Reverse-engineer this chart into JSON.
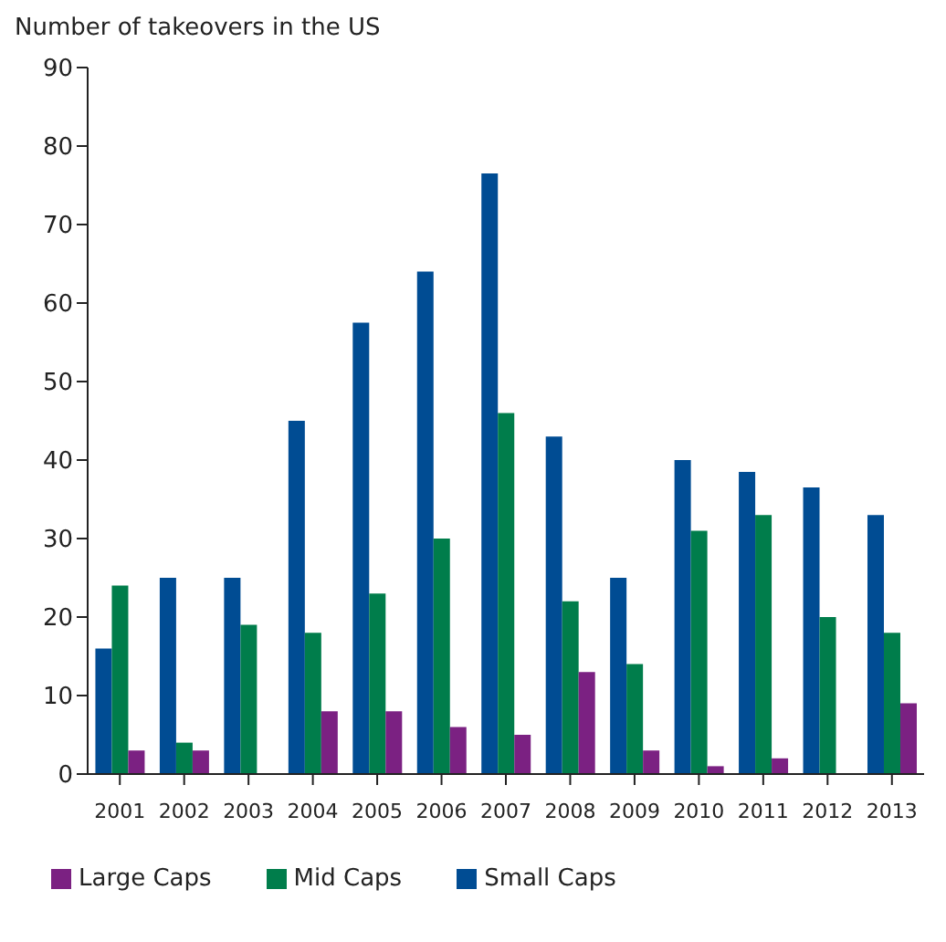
{
  "chart_data": {
    "type": "bar",
    "title": "Number of takeovers in the US",
    "categories": [
      "2001",
      "2002",
      "2003",
      "2004",
      "2005",
      "2006",
      "2007",
      "2008",
      "2009",
      "2010",
      "2011",
      "2012",
      "2013"
    ],
    "series": [
      {
        "name": "Small Caps",
        "color": "#004c93",
        "values": [
          16,
          25,
          25,
          45,
          57.5,
          64,
          76.5,
          43,
          25,
          40,
          38.5,
          36.5,
          33
        ]
      },
      {
        "name": "Mid Caps",
        "color": "#007d4b",
        "values": [
          24,
          4,
          19,
          18,
          23,
          30,
          46,
          22,
          14,
          31,
          33,
          20,
          18
        ]
      },
      {
        "name": "Large Caps",
        "color": "#7b2182",
        "values": [
          3,
          3,
          0,
          8,
          8,
          6,
          5,
          13,
          3,
          1,
          2,
          0,
          9
        ]
      }
    ],
    "ylim": [
      0,
      90
    ],
    "yticks": [
      0,
      10,
      20,
      30,
      40,
      50,
      60,
      70,
      80,
      90
    ],
    "grid": false,
    "legend": "bottom"
  }
}
